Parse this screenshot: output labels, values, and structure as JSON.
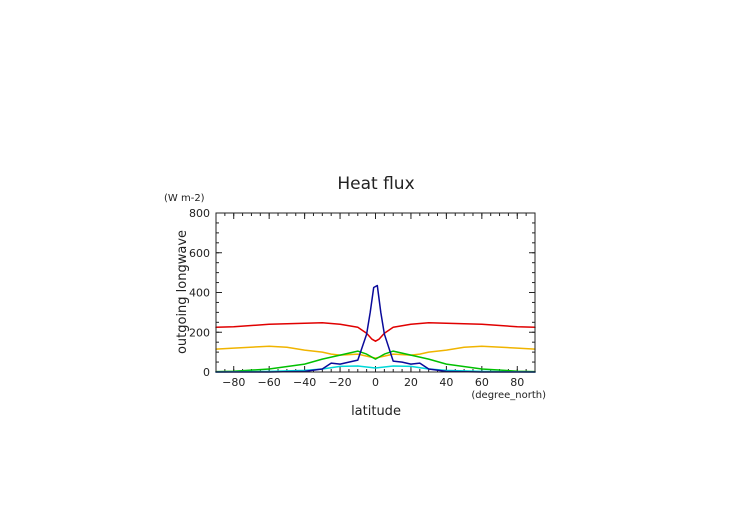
{
  "chart_data": {
    "type": "line",
    "title": "Heat flux",
    "xlabel": "latitude",
    "xunit": "(degree_north)",
    "ylabel": "outgoing longwave",
    "yunit": "(W m-2)",
    "xlim": [
      -90,
      90
    ],
    "ylim": [
      0,
      800
    ],
    "xticks": [
      -80,
      -60,
      -40,
      -20,
      0,
      20,
      40,
      60,
      80
    ],
    "yticks": [
      0,
      200,
      400,
      600,
      800
    ],
    "grid": false,
    "series": [
      {
        "color": "#e00000",
        "x": [
          -90,
          -80,
          -60,
          -40,
          -30,
          -20,
          -10,
          -5,
          -2,
          0,
          2,
          5,
          10,
          20,
          30,
          40,
          60,
          80,
          90
        ],
        "y": [
          225,
          228,
          240,
          245,
          248,
          240,
          225,
          195,
          165,
          155,
          165,
          195,
          225,
          240,
          248,
          245,
          240,
          228,
          225
        ]
      },
      {
        "color": "#f0b400",
        "x": [
          -90,
          -80,
          -60,
          -50,
          -40,
          -30,
          -25,
          -20,
          -10,
          -5,
          0,
          5,
          10,
          20,
          25,
          30,
          40,
          50,
          60,
          80,
          90
        ],
        "y": [
          115,
          120,
          130,
          125,
          110,
          100,
          90,
          85,
          90,
          80,
          70,
          80,
          90,
          85,
          90,
          100,
          110,
          125,
          130,
          120,
          115
        ],
        "dashed": false
      },
      {
        "color": "#00c000",
        "x": [
          -90,
          -80,
          -60,
          -40,
          -30,
          -20,
          -10,
          -5,
          0,
          5,
          10,
          20,
          30,
          40,
          60,
          80,
          90
        ],
        "y": [
          2,
          4,
          15,
          40,
          65,
          85,
          105,
          90,
          65,
          90,
          105,
          85,
          65,
          40,
          15,
          4,
          2
        ]
      },
      {
        "color": "#00d8d8",
        "x": [
          -90,
          -80,
          -60,
          -40,
          -30,
          -20,
          -10,
          0,
          10,
          20,
          30,
          40,
          60,
          80,
          90
        ],
        "y": [
          0,
          1,
          3,
          8,
          15,
          28,
          30,
          20,
          30,
          28,
          15,
          8,
          3,
          1,
          0
        ]
      },
      {
        "color": "#0a0a9a",
        "x": [
          -90,
          -60,
          -40,
          -30,
          -25,
          -20,
          -15,
          -10,
          -5,
          -3,
          -1,
          0,
          1,
          3,
          5,
          10,
          15,
          20,
          25,
          30,
          40,
          60,
          90
        ],
        "y": [
          0,
          0,
          3,
          15,
          45,
          40,
          50,
          60,
          190,
          300,
          425,
          430,
          435,
          300,
          190,
          55,
          50,
          40,
          45,
          15,
          3,
          0,
          0
        ]
      }
    ]
  }
}
